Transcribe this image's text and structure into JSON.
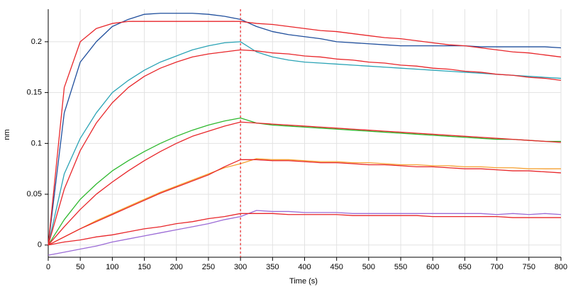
{
  "chart_data": {
    "type": "line",
    "x_label": "Time (s)",
    "y_label": "nm",
    "x": [
      0,
      25,
      50,
      75,
      100,
      125,
      150,
      175,
      200,
      225,
      250,
      275,
      300,
      325,
      350,
      375,
      400,
      425,
      450,
      475,
      500,
      525,
      550,
      575,
      600,
      625,
      650,
      675,
      700,
      725,
      750,
      775,
      800
    ],
    "xlim": [
      0,
      800
    ],
    "ylim": [
      -0.012,
      0.232
    ],
    "xticks": [
      0,
      50,
      100,
      150,
      200,
      250,
      300,
      350,
      400,
      450,
      500,
      550,
      600,
      650,
      700,
      750,
      800
    ],
    "yticks": [
      0,
      0.05,
      0.1,
      0.15,
      0.2
    ],
    "grid": true,
    "vline": {
      "value": 300,
      "color": "#e8262a"
    },
    "series": [
      {
        "color": "#1f4e9c",
        "values": [
          0,
          0.13,
          0.18,
          0.2,
          0.215,
          0.222,
          0.227,
          0.228,
          0.228,
          0.228,
          0.227,
          0.225,
          0.222,
          0.215,
          0.21,
          0.207,
          0.205,
          0.203,
          0.2,
          0.199,
          0.198,
          0.197,
          0.196,
          0.196,
          0.196,
          0.196,
          0.196,
          0.195,
          0.195,
          0.195,
          0.195,
          0.195,
          0.194
        ]
      },
      {
        "color": "#2aa3b5",
        "values": [
          0,
          0.07,
          0.105,
          0.13,
          0.15,
          0.162,
          0.172,
          0.18,
          0.186,
          0.192,
          0.196,
          0.199,
          0.2,
          0.19,
          0.185,
          0.182,
          0.18,
          0.179,
          0.178,
          0.177,
          0.176,
          0.175,
          0.174,
          0.173,
          0.172,
          0.171,
          0.17,
          0.169,
          0.168,
          0.167,
          0.166,
          0.165,
          0.164
        ]
      },
      {
        "color": "#2eb82e",
        "values": [
          0,
          0.025,
          0.045,
          0.06,
          0.073,
          0.083,
          0.092,
          0.1,
          0.107,
          0.113,
          0.118,
          0.122,
          0.125,
          0.12,
          0.118,
          0.117,
          0.116,
          0.115,
          0.114,
          0.113,
          0.112,
          0.111,
          0.11,
          0.109,
          0.108,
          0.107,
          0.106,
          0.105,
          0.104,
          0.104,
          0.103,
          0.102,
          0.102
        ]
      },
      {
        "color": "#f5a030",
        "values": [
          0,
          0.008,
          0.016,
          0.024,
          0.031,
          0.038,
          0.045,
          0.052,
          0.058,
          0.064,
          0.07,
          0.076,
          0.08,
          0.085,
          0.084,
          0.084,
          0.083,
          0.082,
          0.082,
          0.081,
          0.081,
          0.08,
          0.079,
          0.079,
          0.078,
          0.078,
          0.077,
          0.077,
          0.076,
          0.076,
          0.075,
          0.075,
          0.075
        ]
      },
      {
        "color": "#9b6bd6",
        "values": [
          -0.01,
          -0.007,
          -0.004,
          -0.001,
          0.003,
          0.006,
          0.009,
          0.012,
          0.015,
          0.018,
          0.021,
          0.025,
          0.028,
          0.034,
          0.033,
          0.033,
          0.032,
          0.032,
          0.032,
          0.031,
          0.031,
          0.031,
          0.031,
          0.031,
          0.031,
          0.031,
          0.031,
          0.031,
          0.03,
          0.031,
          0.03,
          0.031,
          0.03
        ]
      },
      {
        "color": "#e8262a",
        "values": [
          0,
          0.155,
          0.2,
          0.213,
          0.218,
          0.22,
          0.22,
          0.22,
          0.22,
          0.22,
          0.22,
          0.22,
          0.22,
          0.218,
          0.217,
          0.215,
          0.213,
          0.211,
          0.21,
          0.208,
          0.206,
          0.204,
          0.203,
          0.201,
          0.199,
          0.197,
          0.196,
          0.194,
          0.192,
          0.19,
          0.189,
          0.187,
          0.185
        ]
      },
      {
        "color": "#e8262a",
        "values": [
          0,
          0.055,
          0.093,
          0.12,
          0.14,
          0.155,
          0.166,
          0.174,
          0.18,
          0.185,
          0.188,
          0.19,
          0.192,
          0.191,
          0.189,
          0.188,
          0.186,
          0.185,
          0.183,
          0.182,
          0.18,
          0.179,
          0.177,
          0.176,
          0.174,
          0.173,
          0.171,
          0.17,
          0.168,
          0.167,
          0.165,
          0.164,
          0.162
        ]
      },
      {
        "color": "#e8262a",
        "values": [
          0,
          0.018,
          0.035,
          0.05,
          0.062,
          0.073,
          0.083,
          0.092,
          0.1,
          0.107,
          0.112,
          0.117,
          0.121,
          0.12,
          0.119,
          0.118,
          0.117,
          0.116,
          0.115,
          0.114,
          0.113,
          0.112,
          0.111,
          0.11,
          0.109,
          0.108,
          0.107,
          0.106,
          0.105,
          0.104,
          0.103,
          0.102,
          0.101
        ]
      },
      {
        "color": "#e8262a",
        "values": [
          0,
          0.008,
          0.016,
          0.023,
          0.03,
          0.037,
          0.044,
          0.051,
          0.057,
          0.063,
          0.069,
          0.077,
          0.084,
          0.084,
          0.083,
          0.083,
          0.082,
          0.081,
          0.081,
          0.08,
          0.079,
          0.079,
          0.078,
          0.077,
          0.077,
          0.076,
          0.075,
          0.075,
          0.074,
          0.073,
          0.073,
          0.072,
          0.071
        ]
      },
      {
        "color": "#e8262a",
        "values": [
          0,
          0.003,
          0.005,
          0.008,
          0.01,
          0.013,
          0.016,
          0.018,
          0.021,
          0.023,
          0.026,
          0.028,
          0.031,
          0.031,
          0.031,
          0.03,
          0.03,
          0.03,
          0.03,
          0.029,
          0.029,
          0.029,
          0.029,
          0.029,
          0.028,
          0.028,
          0.028,
          0.028,
          0.028,
          0.027,
          0.027,
          0.027,
          0.027
        ]
      }
    ]
  }
}
